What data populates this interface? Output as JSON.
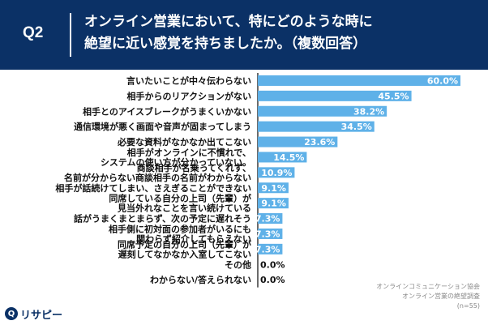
{
  "header": {
    "question_label": "Q2",
    "title_line1": "オンライン営業において、特にどのような時に",
    "title_line2": "絶望に近い感覚を持ちましたか。（複数回答）"
  },
  "colors": {
    "header_bg": "#0b3166",
    "bar": "#5fb1e8",
    "axis": "#3a3a3a"
  },
  "chart_data": {
    "type": "bar",
    "orientation": "horizontal",
    "title": "オンライン営業において、特にどのような時に絶望に近い感覚を持ちましたか。（複数回答）",
    "xlabel": "",
    "ylabel": "",
    "xlim": [
      0,
      60
    ],
    "categories": [
      [
        "言いたいことが中々伝わらない"
      ],
      [
        "相手からのリアクションがない"
      ],
      [
        "相手とのアイスブレークがうまくいかない"
      ],
      [
        "通信環境が悪く画面や音声が固まってしまう"
      ],
      [
        "必要な資料がなかなか出てこない"
      ],
      [
        "相手がオンラインに不慣れで、",
        "システムの使い方が分かっていない。"
      ],
      [
        "商談相手が名乗ってくれず、",
        "名前が分からない商談相手の名前がわからない"
      ],
      [
        "相手が話続けてしまい、さえぎることができない"
      ],
      [
        "同席している自分の上司（先輩）が",
        "見当外れなことを言い続けている"
      ],
      [
        "話がうまくまとまらず、次の予定に遅れそう"
      ],
      [
        "相手側に初対面の参加者がいるにも",
        "関わらず紹介してもらえない"
      ],
      [
        "同席予定の自分の上司（先輩）が",
        "遅刻してなかなか入室してこない"
      ],
      [
        "その他"
      ],
      [
        "わからない/答えられない"
      ]
    ],
    "values": [
      60.0,
      45.5,
      38.2,
      34.5,
      23.6,
      14.5,
      10.9,
      9.1,
      9.1,
      7.3,
      7.3,
      7.3,
      0.0,
      0.0
    ],
    "value_labels": [
      "60.0%",
      "45.5%",
      "38.2%",
      "34.5%",
      "23.6%",
      "14.5%",
      "10.9%",
      "9.1%",
      "9.1%",
      "7.3%",
      "7.3%",
      "7.3%",
      "0.0%",
      "0.0%"
    ]
  },
  "source": {
    "line1": "オンラインコミュニケーション協会",
    "line2": "オンライン営業の絶望調査",
    "line3": "(n=55)"
  },
  "brand": {
    "icon": "Q",
    "name": "リサピー"
  }
}
